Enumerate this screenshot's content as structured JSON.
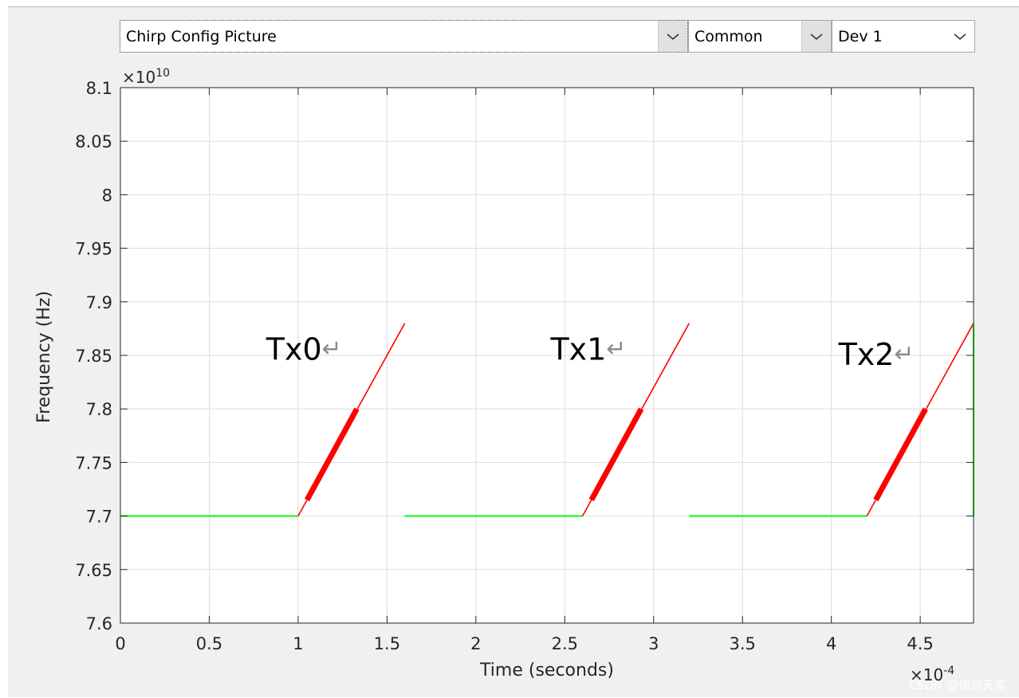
{
  "toolbar": {
    "config_select": "Chirp Config Picture",
    "mode_select": "Common",
    "device_select": "Dev 1"
  },
  "icons": {
    "dropdown": "chevron-down-icon"
  },
  "colors": {
    "chirp": "#ff0000",
    "idle": "#00ff00",
    "grid": "#dcdcdc",
    "axes_bg": "#ffffff"
  },
  "chart_data": {
    "type": "line",
    "xlabel": "Time (seconds)",
    "ylabel": "Frequency (Hz)",
    "x_exponent_label": "×10",
    "x_exponent": "-4",
    "y_exponent_label": "×10",
    "y_exponent": "10",
    "xlim": [
      0,
      4.8
    ],
    "ylim": [
      7.6,
      8.1
    ],
    "x_ticks": [
      "0",
      "0.5",
      "1",
      "1.5",
      "2",
      "2.5",
      "3",
      "3.5",
      "4",
      "4.5"
    ],
    "y_ticks": [
      "7.6",
      "7.65",
      "7.7",
      "7.75",
      "7.8",
      "7.85",
      "7.9",
      "7.95",
      "8",
      "8.05",
      "8.1"
    ],
    "grid": true,
    "annotations": [
      {
        "text": "Tx0",
        "mark": "↵",
        "x": 0.82,
        "y": 7.846
      },
      {
        "text": "Tx1",
        "mark": "↵",
        "x": 2.42,
        "y": 7.846
      },
      {
        "text": "Tx2",
        "mark": "↵",
        "x": 4.04,
        "y": 7.841
      }
    ],
    "series": [
      {
        "role": "idle",
        "color": "#00ff00",
        "x": [
          0,
          1.0
        ],
        "y": [
          7.7,
          7.7
        ]
      },
      {
        "role": "chirp",
        "color": "#ff0000",
        "x": [
          1.0,
          1.6
        ],
        "y": [
          7.7,
          7.88
        ]
      },
      {
        "role": "sampling",
        "color": "#ff0000",
        "x": [
          1.05,
          1.33
        ],
        "y": [
          7.715,
          7.8
        ]
      },
      {
        "role": "idle",
        "color": "#00ff00",
        "x": [
          1.6,
          2.6
        ],
        "y": [
          7.7,
          7.7
        ]
      },
      {
        "role": "chirp",
        "color": "#ff0000",
        "x": [
          2.6,
          3.2
        ],
        "y": [
          7.7,
          7.88
        ]
      },
      {
        "role": "sampling",
        "color": "#ff0000",
        "x": [
          2.65,
          2.93
        ],
        "y": [
          7.715,
          7.8
        ]
      },
      {
        "role": "idle",
        "color": "#00ff00",
        "x": [
          3.2,
          4.2
        ],
        "y": [
          7.7,
          7.7
        ]
      },
      {
        "role": "chirp",
        "color": "#ff0000",
        "x": [
          4.2,
          4.8
        ],
        "y": [
          7.7,
          7.88
        ]
      },
      {
        "role": "sampling",
        "color": "#ff0000",
        "x": [
          4.25,
          4.53
        ],
        "y": [
          7.715,
          7.8
        ]
      },
      {
        "role": "idle",
        "color": "#00ff00",
        "x": [
          4.8,
          4.8
        ],
        "y": [
          7.7,
          7.88
        ]
      }
    ]
  },
  "watermark": "CSDN @倚剑天客"
}
